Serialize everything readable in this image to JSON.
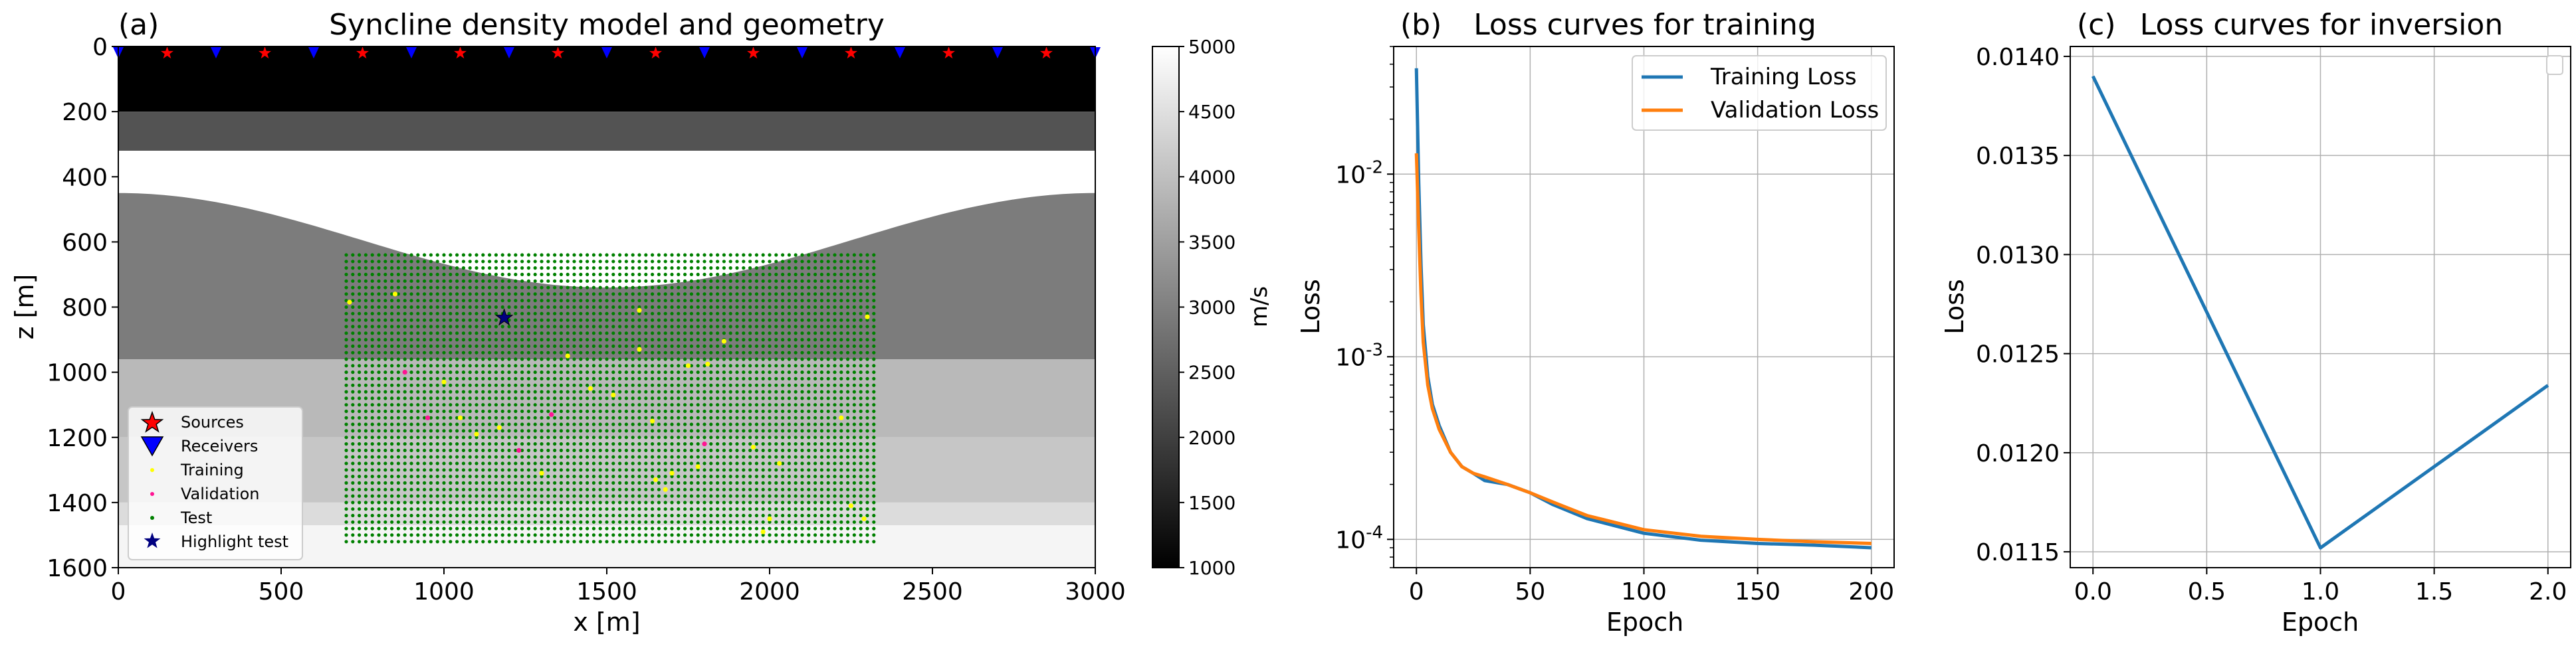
{
  "colors": {
    "blue": "#1f77b4",
    "orange": "#ff7f0e",
    "source": "#ff0000",
    "receiver": "#0000ff",
    "training": "#ffff00",
    "validation": "#ff1493",
    "test": "#008000",
    "highlight": "#000080",
    "grid": "#b0b0b0"
  },
  "chart_data": [
    {
      "type": "heatmap",
      "panel_letter": "(a)",
      "title": "Syncline density model and geometry",
      "xlabel": "x [m]",
      "ylabel": "z [m]",
      "xlim": [
        0,
        3000
      ],
      "ylim": [
        1600,
        0
      ],
      "xticks": [
        "0",
        "500",
        "1000",
        "1500",
        "2000",
        "2500",
        "3000"
      ],
      "yticks": [
        "0",
        "200",
        "400",
        "600",
        "800",
        "1000",
        "1200",
        "1400",
        "1600"
      ],
      "colorbar": {
        "label": "m/s",
        "range": [
          1000,
          5000
        ],
        "ticks": [
          "1000",
          "1500",
          "2000",
          "2500",
          "3000",
          "3500",
          "4000",
          "4500",
          "5000"
        ]
      },
      "layers": [
        {
          "top": 0,
          "bottom": 200,
          "velocity": 1000
        },
        {
          "top": 200,
          "bottom": 320,
          "velocity": 2300
        },
        {
          "top": 320,
          "bottom": "syncline",
          "velocity": 5000
        },
        {
          "top": "syncline",
          "bottom": 960,
          "velocity": 2950
        },
        {
          "top": 960,
          "bottom": 1200,
          "velocity": 3900
        },
        {
          "top": 1200,
          "bottom": 1400,
          "velocity": 4100
        },
        {
          "top": 1400,
          "bottom": 1470,
          "velocity": 4450
        },
        {
          "top": 1470,
          "bottom": 1600,
          "velocity": 4850
        }
      ],
      "syncline": {
        "edge_depth": 450,
        "center_depth": 740,
        "center_x": 1500
      },
      "sources_x": [
        150,
        450,
        750,
        1050,
        1350,
        1650,
        1950,
        2250,
        2550,
        2850
      ],
      "receivers_x": [
        0,
        300,
        600,
        900,
        1200,
        1500,
        1800,
        2100,
        2400,
        2700,
        3000
      ],
      "test_grid": {
        "x_range": [
          700,
          2320
        ],
        "z_range": [
          640,
          1530
        ],
        "dx": 20,
        "dz": 20
      },
      "training_points": [
        [
          710,
          785
        ],
        [
          850,
          760
        ],
        [
          1000,
          1030
        ],
        [
          1050,
          1140
        ],
        [
          1100,
          1190
        ],
        [
          1170,
          1170
        ],
        [
          1300,
          1310
        ],
        [
          1380,
          950
        ],
        [
          1450,
          1050
        ],
        [
          1520,
          1070
        ],
        [
          1600,
          810
        ],
        [
          1600,
          930
        ],
        [
          1640,
          1150
        ],
        [
          1650,
          1330
        ],
        [
          1680,
          1360
        ],
        [
          1700,
          1310
        ],
        [
          1750,
          980
        ],
        [
          1780,
          1290
        ],
        [
          1810,
          975
        ],
        [
          1860,
          905
        ],
        [
          1950,
          1230
        ],
        [
          1980,
          1490
        ],
        [
          2000,
          1450
        ],
        [
          2030,
          1280
        ],
        [
          2220,
          1140
        ],
        [
          2250,
          1410
        ],
        [
          2290,
          1450
        ],
        [
          2300,
          830
        ]
      ],
      "validation_points": [
        [
          880,
          1000
        ],
        [
          950,
          1140
        ],
        [
          1230,
          1240
        ],
        [
          1330,
          1130
        ],
        [
          1800,
          1220
        ]
      ],
      "highlight_point": [
        1185,
        833
      ],
      "legend": [
        "Sources",
        "Receivers",
        "Training",
        "Validation",
        "Test",
        "Highlight test"
      ]
    },
    {
      "type": "line",
      "panel_letter": "(b)",
      "title": "Loss curves for training",
      "xlabel": "Epoch",
      "ylabel": "Loss",
      "yscale": "log",
      "xlim": [
        -10,
        210
      ],
      "ylim": [
        7e-05,
        0.05
      ],
      "xticks": [
        "0",
        "50",
        "100",
        "150",
        "200"
      ],
      "yticks": [
        "10^-4",
        "10^-3",
        "10^-2"
      ],
      "x": [
        0,
        1,
        2,
        3,
        5,
        7,
        10,
        15,
        20,
        25,
        30,
        40,
        50,
        60,
        75,
        100,
        125,
        150,
        175,
        200
      ],
      "series": [
        {
          "name": "Training Loss",
          "values": [
            0.038,
            0.009,
            0.0032,
            0.0015,
            0.00078,
            0.00055,
            0.00042,
            0.0003,
            0.00025,
            0.00023,
            0.00021,
            0.0002,
            0.00018,
            0.000155,
            0.00013,
            0.000108,
            9.9e-05,
            9.5e-05,
            9.3e-05,
            9e-05
          ]
        },
        {
          "name": "Validation Loss",
          "values": [
            0.013,
            0.005,
            0.0022,
            0.0012,
            0.0007,
            0.00052,
            0.0004,
            0.0003,
            0.00025,
            0.00023,
            0.00022,
            0.0002,
            0.00018,
            0.00016,
            0.000135,
            0.000113,
            0.000104,
            0.0001,
            9.7e-05,
            9.5e-05
          ]
        }
      ],
      "legend_position": "top-right"
    },
    {
      "type": "line",
      "panel_letter": "(c)",
      "title": "Loss curves for inversion",
      "xlabel": "Epoch",
      "ylabel": "Loss",
      "xlim": [
        -0.1,
        2.1
      ],
      "ylim": [
        0.01142,
        0.01405
      ],
      "xticks": [
        "0.0",
        "0.5",
        "1.0",
        "1.5",
        "2.0"
      ],
      "yticks": [
        "0.0115",
        "0.0120",
        "0.0125",
        "0.0130",
        "0.0135",
        "0.0140"
      ],
      "x": [
        0,
        1,
        2
      ],
      "series": [
        {
          "name": "",
          "values": [
            0.0139,
            0.01152,
            0.01234
          ]
        }
      ],
      "legend_position": "top-right"
    }
  ]
}
